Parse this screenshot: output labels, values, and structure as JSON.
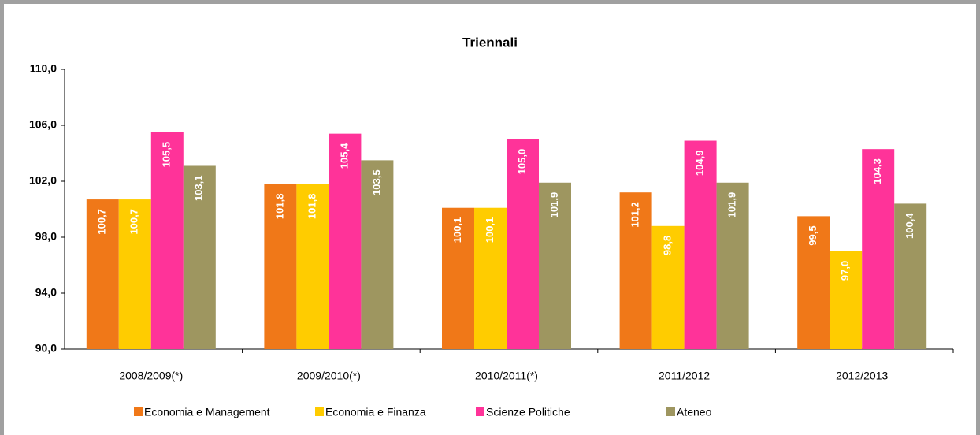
{
  "chart_data": {
    "type": "bar",
    "title": "Triennali",
    "categories": [
      "2008/2009(*)",
      "2009/2010(*)",
      "2010/2011(*)",
      "2011/2012",
      "2012/2013"
    ],
    "series": [
      {
        "name": "Economia e Management",
        "color": "#f07818",
        "values": [
          100.7,
          101.8,
          100.1,
          101.2,
          99.5
        ],
        "value_labels": [
          "100,7",
          "101,8",
          "100,1",
          "101,2",
          "99,5"
        ]
      },
      {
        "name": "Economia e Finanza",
        "color": "#ffcc00",
        "values": [
          100.7,
          101.8,
          100.1,
          98.8,
          97.0
        ],
        "value_labels": [
          "100,7",
          "101,8",
          "100,1",
          "98,8",
          "97,0"
        ]
      },
      {
        "name": "Scienze Politiche",
        "color": "#ff3399",
        "values": [
          105.5,
          105.4,
          105.0,
          104.9,
          104.3
        ],
        "value_labels": [
          "105,5",
          "105,4",
          "105,0",
          "104,9",
          "104,3"
        ]
      },
      {
        "name": "Ateneo",
        "color": "#9e9660",
        "values": [
          103.1,
          103.5,
          101.9,
          101.9,
          100.4
        ],
        "value_labels": [
          "103,1",
          "103,5",
          "101,9",
          "101,9",
          "100,4"
        ]
      }
    ],
    "ylim": [
      90,
      110
    ],
    "yticks": [
      {
        "value": 90,
        "label": "90,0"
      },
      {
        "value": 94,
        "label": "94,0"
      },
      {
        "value": 98,
        "label": "98,0"
      },
      {
        "value": 102,
        "label": "102,0"
      },
      {
        "value": 106,
        "label": "106,0"
      },
      {
        "value": 110,
        "label": "110,0"
      }
    ],
    "grid": false,
    "legend": "bottom"
  }
}
